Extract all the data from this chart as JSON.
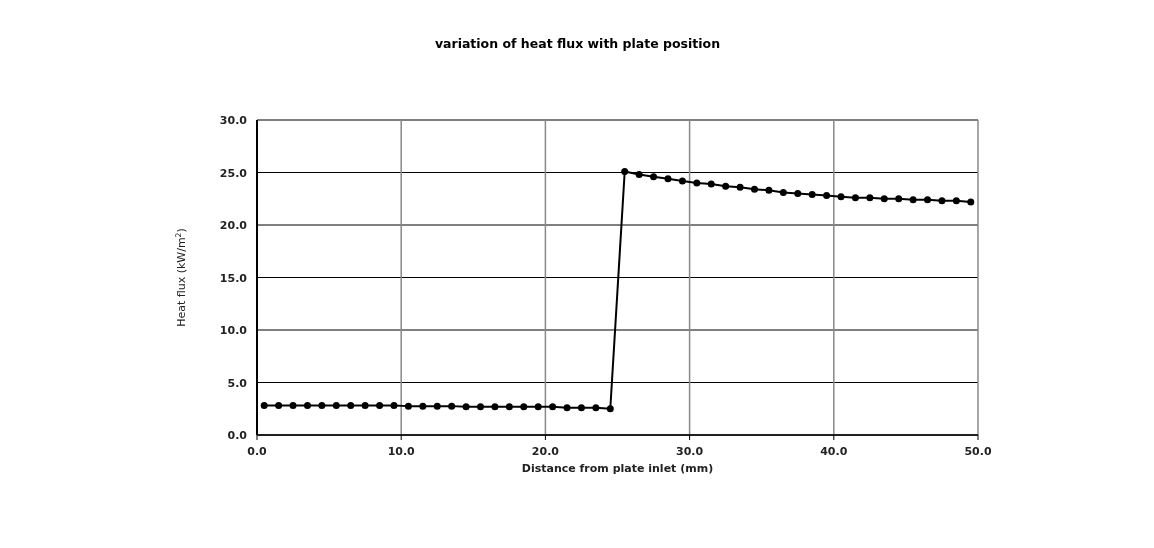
{
  "chart_data": {
    "type": "line",
    "title": "variation of heat flux with plate position",
    "xlabel": "Distance from plate inlet (mm)",
    "ylabel": "Heat flux (kW/m$^{2}$)",
    "x": [
      0.5,
      1.5,
      2.5,
      3.5,
      4.5,
      5.5,
      6.5,
      7.5,
      8.5,
      9.5,
      10.5,
      11.5,
      12.5,
      13.5,
      14.5,
      15.5,
      16.5,
      17.5,
      18.5,
      19.5,
      20.5,
      21.5,
      22.5,
      23.5,
      24.5,
      25.5,
      26.5,
      27.5,
      28.5,
      29.5,
      30.5,
      31.5,
      32.5,
      33.5,
      34.5,
      35.5,
      36.5,
      37.5,
      38.5,
      39.5,
      40.5,
      41.5,
      42.5,
      43.5,
      44.5,
      45.5,
      46.5,
      47.5,
      48.5,
      49.5
    ],
    "series": [
      {
        "color": "#000000",
        "values": [
          2.8,
          2.8,
          2.8,
          2.8,
          2.8,
          2.8,
          2.8,
          2.8,
          2.8,
          2.8,
          2.75,
          2.75,
          2.75,
          2.75,
          2.7,
          2.7,
          2.7,
          2.7,
          2.7,
          2.7,
          2.7,
          2.6,
          2.6,
          2.6,
          2.5,
          25.1,
          24.8,
          24.6,
          24.4,
          24.2,
          24.0,
          23.9,
          23.7,
          23.6,
          23.4,
          23.3,
          23.1,
          23.0,
          22.9,
          22.8,
          22.7,
          22.6,
          22.6,
          22.5,
          22.5,
          22.4,
          22.4,
          22.3,
          22.3,
          22.2
        ]
      }
    ],
    "xlim": [
      0,
      50
    ],
    "xticks": [
      {
        "value": 0,
        "label": "0.0"
      },
      {
        "value": 10,
        "label": "10.0"
      },
      {
        "value": 20,
        "label": "20.0"
      },
      {
        "value": 30,
        "label": "30.0"
      },
      {
        "value": 40,
        "label": "40.0"
      },
      {
        "value": 50,
        "label": "50.0"
      }
    ],
    "ylim": [
      0,
      30
    ],
    "yticks": [
      {
        "value": 0,
        "label": "0.0"
      },
      {
        "value": 5,
        "label": "5.0"
      },
      {
        "value": 10,
        "label": "10.0"
      },
      {
        "value": 15,
        "label": "15.0"
      },
      {
        "value": 20,
        "label": "20.0"
      },
      {
        "value": 25,
        "label": "25.0"
      },
      {
        "value": 30,
        "label": "30.0"
      }
    ],
    "grid": true,
    "marker": "circle",
    "line_style": "solid"
  }
}
